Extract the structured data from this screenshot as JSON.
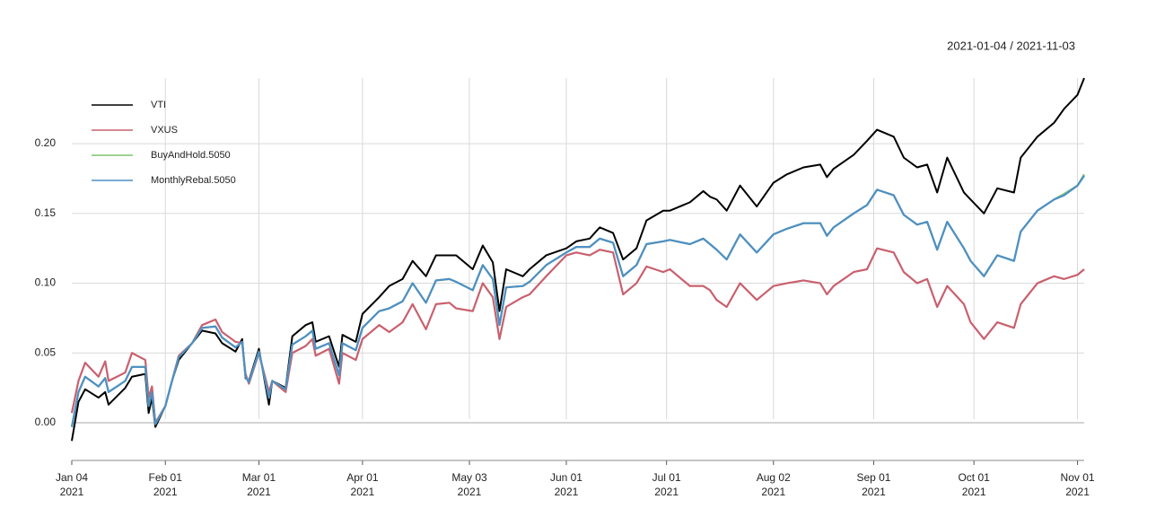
{
  "chart_data": {
    "type": "line",
    "subtitle": "2021-01-04 / 2021-11-03",
    "x": [
      "2021-01-04",
      "2021-01-06",
      "2021-01-08",
      "2021-01-12",
      "2021-01-14",
      "2021-01-15",
      "2021-01-20",
      "2021-01-22",
      "2021-01-26",
      "2021-01-27",
      "2021-01-28",
      "2021-01-29",
      "2021-02-01",
      "2021-02-03",
      "2021-02-05",
      "2021-02-09",
      "2021-02-12",
      "2021-02-16",
      "2021-02-18",
      "2021-02-22",
      "2021-02-24",
      "2021-02-25",
      "2021-02-26",
      "2021-03-01",
      "2021-03-04",
      "2021-03-05",
      "2021-03-09",
      "2021-03-11",
      "2021-03-15",
      "2021-03-17",
      "2021-03-18",
      "2021-03-22",
      "2021-03-25",
      "2021-03-26",
      "2021-03-30",
      "2021-04-01",
      "2021-04-06",
      "2021-04-09",
      "2021-04-13",
      "2021-04-16",
      "2021-04-20",
      "2021-04-23",
      "2021-04-27",
      "2021-04-29",
      "2021-05-04",
      "2021-05-07",
      "2021-05-10",
      "2021-05-12",
      "2021-05-14",
      "2021-05-19",
      "2021-05-21",
      "2021-05-26",
      "2021-06-01",
      "2021-06-04",
      "2021-06-08",
      "2021-06-11",
      "2021-06-15",
      "2021-06-18",
      "2021-06-22",
      "2021-06-25",
      "2021-06-30",
      "2021-07-02",
      "2021-07-08",
      "2021-07-12",
      "2021-07-14",
      "2021-07-16",
      "2021-07-19",
      "2021-07-23",
      "2021-07-28",
      "2021-08-02",
      "2021-08-06",
      "2021-08-11",
      "2021-08-16",
      "2021-08-18",
      "2021-08-20",
      "2021-08-26",
      "2021-08-30",
      "2021-09-02",
      "2021-09-07",
      "2021-09-10",
      "2021-09-14",
      "2021-09-17",
      "2021-09-20",
      "2021-09-23",
      "2021-09-28",
      "2021-09-30",
      "2021-10-04",
      "2021-10-08",
      "2021-10-13",
      "2021-10-15",
      "2021-10-20",
      "2021-10-25",
      "2021-10-28",
      "2021-11-01",
      "2021-11-03"
    ],
    "series": [
      {
        "name": "VTI",
        "color": "#000000",
        "values": [
          -0.013,
          0.015,
          0.024,
          0.018,
          0.022,
          0.013,
          0.025,
          0.033,
          0.035,
          0.007,
          0.018,
          -0.003,
          0.012,
          0.03,
          0.045,
          0.057,
          0.066,
          0.064,
          0.057,
          0.051,
          0.06,
          0.032,
          0.03,
          0.053,
          0.013,
          0.03,
          0.025,
          0.062,
          0.07,
          0.072,
          0.058,
          0.062,
          0.04,
          0.063,
          0.058,
          0.078,
          0.09,
          0.098,
          0.103,
          0.116,
          0.105,
          0.12,
          0.12,
          0.12,
          0.11,
          0.127,
          0.115,
          0.08,
          0.11,
          0.105,
          0.11,
          0.12,
          0.125,
          0.13,
          0.132,
          0.14,
          0.136,
          0.117,
          0.125,
          0.145,
          0.152,
          0.152,
          0.158,
          0.166,
          0.162,
          0.16,
          0.152,
          0.17,
          0.155,
          0.172,
          0.178,
          0.183,
          0.185,
          0.176,
          0.182,
          0.192,
          0.202,
          0.21,
          0.205,
          0.19,
          0.183,
          0.185,
          0.165,
          0.19,
          0.165,
          0.16,
          0.15,
          0.168,
          0.165,
          0.19,
          0.205,
          0.215,
          0.225,
          0.235,
          0.247
        ]
      },
      {
        "name": "VXUS",
        "color": "#C9606E",
        "values": [
          0.007,
          0.03,
          0.043,
          0.033,
          0.044,
          0.03,
          0.036,
          0.05,
          0.045,
          0.018,
          0.026,
          0.0,
          0.012,
          0.03,
          0.048,
          0.057,
          0.07,
          0.074,
          0.065,
          0.058,
          0.057,
          0.035,
          0.028,
          0.05,
          0.022,
          0.03,
          0.022,
          0.05,
          0.055,
          0.06,
          0.048,
          0.053,
          0.028,
          0.05,
          0.045,
          0.06,
          0.07,
          0.065,
          0.072,
          0.085,
          0.067,
          0.085,
          0.086,
          0.082,
          0.08,
          0.1,
          0.09,
          0.06,
          0.083,
          0.09,
          0.092,
          0.105,
          0.12,
          0.122,
          0.12,
          0.124,
          0.122,
          0.092,
          0.1,
          0.112,
          0.108,
          0.11,
          0.098,
          0.098,
          0.095,
          0.088,
          0.083,
          0.1,
          0.088,
          0.098,
          0.1,
          0.102,
          0.1,
          0.092,
          0.098,
          0.108,
          0.11,
          0.125,
          0.122,
          0.108,
          0.1,
          0.103,
          0.083,
          0.098,
          0.085,
          0.072,
          0.06,
          0.072,
          0.068,
          0.085,
          0.1,
          0.105,
          0.103,
          0.106,
          0.11
        ]
      },
      {
        "name": "BuyAndHold.5050",
        "color": "#7CC46E",
        "values": [
          -0.003,
          0.022,
          0.033,
          0.026,
          0.032,
          0.022,
          0.03,
          0.04,
          0.04,
          0.012,
          0.022,
          -0.001,
          0.012,
          0.03,
          0.047,
          0.057,
          0.068,
          0.069,
          0.061,
          0.054,
          0.058,
          0.033,
          0.029,
          0.051,
          0.018,
          0.03,
          0.024,
          0.056,
          0.062,
          0.066,
          0.053,
          0.057,
          0.034,
          0.057,
          0.052,
          0.068,
          0.08,
          0.082,
          0.087,
          0.1,
          0.086,
          0.102,
          0.103,
          0.101,
          0.095,
          0.113,
          0.103,
          0.07,
          0.097,
          0.098,
          0.101,
          0.113,
          0.122,
          0.126,
          0.126,
          0.132,
          0.129,
          0.105,
          0.113,
          0.128,
          0.13,
          0.131,
          0.128,
          0.132,
          0.128,
          0.124,
          0.117,
          0.135,
          0.122,
          0.135,
          0.139,
          0.143,
          0.143,
          0.134,
          0.14,
          0.15,
          0.156,
          0.167,
          0.163,
          0.149,
          0.142,
          0.144,
          0.124,
          0.144,
          0.125,
          0.116,
          0.105,
          0.12,
          0.116,
          0.137,
          0.152,
          0.16,
          0.164,
          0.17,
          0.178
        ]
      },
      {
        "name": "MonthlyRebal.5050",
        "color": "#4F8FC4",
        "values": [
          -0.003,
          0.022,
          0.033,
          0.026,
          0.032,
          0.022,
          0.03,
          0.04,
          0.04,
          0.012,
          0.022,
          -0.001,
          0.012,
          0.03,
          0.047,
          0.057,
          0.068,
          0.069,
          0.061,
          0.054,
          0.058,
          0.033,
          0.029,
          0.051,
          0.018,
          0.03,
          0.024,
          0.056,
          0.062,
          0.066,
          0.053,
          0.057,
          0.034,
          0.057,
          0.052,
          0.068,
          0.08,
          0.082,
          0.087,
          0.1,
          0.086,
          0.102,
          0.103,
          0.101,
          0.095,
          0.113,
          0.103,
          0.07,
          0.097,
          0.098,
          0.101,
          0.113,
          0.122,
          0.126,
          0.126,
          0.132,
          0.129,
          0.105,
          0.113,
          0.128,
          0.13,
          0.131,
          0.128,
          0.132,
          0.128,
          0.124,
          0.117,
          0.135,
          0.122,
          0.135,
          0.139,
          0.143,
          0.143,
          0.134,
          0.14,
          0.15,
          0.156,
          0.167,
          0.163,
          0.149,
          0.142,
          0.144,
          0.124,
          0.144,
          0.125,
          0.116,
          0.105,
          0.12,
          0.116,
          0.137,
          0.152,
          0.16,
          0.163,
          0.17,
          0.177
        ]
      }
    ],
    "xlim": [
      "2021-01-04",
      "2021-11-03"
    ],
    "xticks": [
      {
        "value": "2021-01-04",
        "label": [
          "Jan 04",
          "2021"
        ]
      },
      {
        "value": "2021-02-01",
        "label": [
          "Feb 01",
          "2021"
        ]
      },
      {
        "value": "2021-03-01",
        "label": [
          "Mar 01",
          "2021"
        ]
      },
      {
        "value": "2021-04-01",
        "label": [
          "Apr 01",
          "2021"
        ]
      },
      {
        "value": "2021-05-03",
        "label": [
          "May 03",
          "2021"
        ]
      },
      {
        "value": "2021-06-01",
        "label": [
          "Jun 01",
          "2021"
        ]
      },
      {
        "value": "2021-07-01",
        "label": [
          "Jul 01",
          "2021"
        ]
      },
      {
        "value": "2021-08-02",
        "label": [
          "Aug 02",
          "2021"
        ]
      },
      {
        "value": "2021-09-01",
        "label": [
          "Sep 01",
          "2021"
        ]
      },
      {
        "value": "2021-10-01",
        "label": [
          "Oct 01",
          "2021"
        ]
      },
      {
        "value": "2021-11-01",
        "label": [
          "Nov 01",
          "2021"
        ]
      }
    ],
    "ylim": [
      -0.027,
      0.247
    ],
    "yticks": [
      {
        "value": 0,
        "label": "0.00"
      },
      0.05,
      {
        "value": 0.1,
        "label": "0.10"
      },
      0.15,
      {
        "value": 0.2,
        "label": "0.20"
      }
    ],
    "grid": true,
    "legend": "top-left"
  }
}
